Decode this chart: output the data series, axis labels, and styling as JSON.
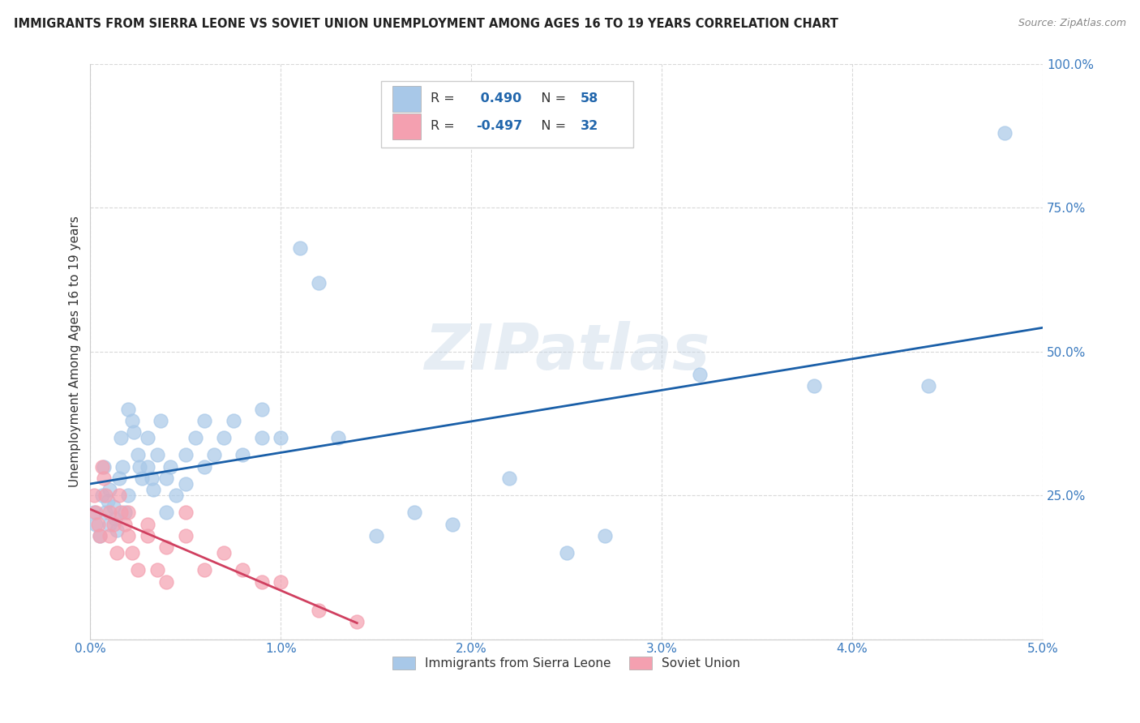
{
  "title": "IMMIGRANTS FROM SIERRA LEONE VS SOVIET UNION UNEMPLOYMENT AMONG AGES 16 TO 19 YEARS CORRELATION CHART",
  "source": "Source: ZipAtlas.com",
  "ylabel": "Unemployment Among Ages 16 to 19 years",
  "xlim": [
    0.0,
    0.05
  ],
  "ylim": [
    0.0,
    1.0
  ],
  "xticks": [
    0.0,
    0.01,
    0.02,
    0.03,
    0.04,
    0.05
  ],
  "yticks": [
    0.0,
    0.25,
    0.5,
    0.75,
    1.0
  ],
  "xtick_labels": [
    "0.0%",
    "1.0%",
    "2.0%",
    "3.0%",
    "4.0%",
    "5.0%"
  ],
  "ytick_labels": [
    "",
    "25.0%",
    "50.0%",
    "75.0%",
    "100.0%"
  ],
  "blue_color": "#a8c8e8",
  "pink_color": "#f4a0b0",
  "blue_line_color": "#1a5fa8",
  "pink_line_color": "#d04060",
  "legend_blue_label": "Immigrants from Sierra Leone",
  "legend_pink_label": "Soviet Union",
  "R_blue": 0.49,
  "N_blue": 58,
  "R_pink": -0.497,
  "N_pink": 32,
  "watermark": "ZIPatlas",
  "blue_x": [
    0.0002,
    0.0003,
    0.0005,
    0.0006,
    0.0007,
    0.0008,
    0.0009,
    0.001,
    0.001,
    0.0012,
    0.0013,
    0.0014,
    0.0015,
    0.0016,
    0.0017,
    0.0018,
    0.002,
    0.002,
    0.0022,
    0.0023,
    0.0025,
    0.0026,
    0.0027,
    0.003,
    0.003,
    0.0032,
    0.0033,
    0.0035,
    0.0037,
    0.004,
    0.004,
    0.0042,
    0.0045,
    0.005,
    0.005,
    0.0055,
    0.006,
    0.006,
    0.0065,
    0.007,
    0.0075,
    0.008,
    0.009,
    0.009,
    0.01,
    0.011,
    0.012,
    0.013,
    0.015,
    0.017,
    0.019,
    0.022,
    0.025,
    0.027,
    0.032,
    0.038,
    0.044,
    0.048
  ],
  "blue_y": [
    0.22,
    0.2,
    0.18,
    0.25,
    0.3,
    0.22,
    0.24,
    0.2,
    0.26,
    0.23,
    0.21,
    0.19,
    0.28,
    0.35,
    0.3,
    0.22,
    0.4,
    0.25,
    0.38,
    0.36,
    0.32,
    0.3,
    0.28,
    0.35,
    0.3,
    0.28,
    0.26,
    0.32,
    0.38,
    0.28,
    0.22,
    0.3,
    0.25,
    0.27,
    0.32,
    0.35,
    0.3,
    0.38,
    0.32,
    0.35,
    0.38,
    0.32,
    0.35,
    0.4,
    0.35,
    0.68,
    0.62,
    0.35,
    0.18,
    0.22,
    0.2,
    0.28,
    0.15,
    0.18,
    0.46,
    0.44,
    0.44,
    0.88
  ],
  "pink_x": [
    0.0002,
    0.0003,
    0.0004,
    0.0005,
    0.0006,
    0.0007,
    0.0008,
    0.001,
    0.001,
    0.0012,
    0.0014,
    0.0015,
    0.0016,
    0.0018,
    0.002,
    0.002,
    0.0022,
    0.0025,
    0.003,
    0.003,
    0.0035,
    0.004,
    0.004,
    0.005,
    0.005,
    0.006,
    0.007,
    0.008,
    0.009,
    0.01,
    0.012,
    0.014
  ],
  "pink_y": [
    0.25,
    0.22,
    0.2,
    0.18,
    0.3,
    0.28,
    0.25,
    0.22,
    0.18,
    0.2,
    0.15,
    0.25,
    0.22,
    0.2,
    0.18,
    0.22,
    0.15,
    0.12,
    0.2,
    0.18,
    0.12,
    0.1,
    0.16,
    0.18,
    0.22,
    0.12,
    0.15,
    0.12,
    0.1,
    0.1,
    0.05,
    0.03
  ]
}
